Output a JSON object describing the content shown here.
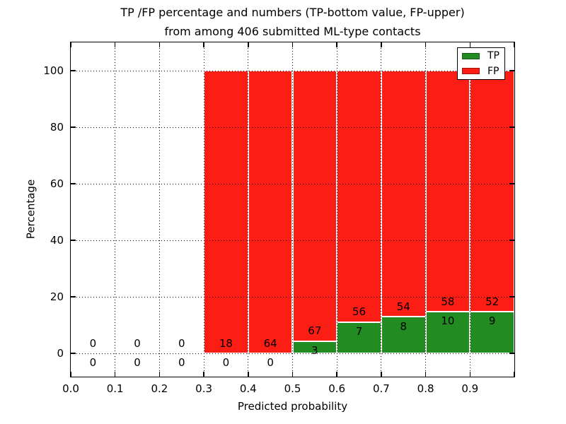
{
  "chart_data": {
    "type": "bar",
    "subtype": "stacked-percentage-histogram",
    "title_line1": "TP /FP percentage and numbers (TP-bottom value, FP-upper)",
    "title_line2": "from among 406 submitted ML-type contacts",
    "xlabel": "Predicted probability",
    "ylabel": "Percentage",
    "total_contacts": 406,
    "bin_edges": [
      0.0,
      0.1,
      0.2,
      0.3,
      0.4,
      0.5,
      0.6,
      0.7,
      0.8,
      0.9,
      1.0
    ],
    "categories": [
      "0.0-0.1",
      "0.1-0.2",
      "0.2-0.3",
      "0.3-0.4",
      "0.4-0.5",
      "0.5-0.6",
      "0.6-0.7",
      "0.7-0.8",
      "0.8-0.9",
      "0.9-1.0"
    ],
    "series": [
      {
        "name": "TP",
        "color": "#228b22",
        "counts": [
          0,
          0,
          0,
          0,
          0,
          3,
          7,
          8,
          10,
          9
        ]
      },
      {
        "name": "FP",
        "color": "#fc1d14",
        "counts": [
          0,
          0,
          0,
          18,
          64,
          67,
          56,
          54,
          58,
          52
        ]
      }
    ],
    "tp_percent_of_bin": [
      null,
      null,
      null,
      0,
      0,
      4.29,
      11.11,
      12.9,
      14.71,
      14.75
    ],
    "bars_fill_to_percent": 100,
    "x_tick_labels": [
      "0.0",
      "0.1",
      "0.2",
      "0.3",
      "0.4",
      "0.5",
      "0.6",
      "0.7",
      "0.8",
      "0.9"
    ],
    "y_tick_labels": [
      "0",
      "20",
      "40",
      "60",
      "80",
      "100"
    ],
    "y_ticks": [
      0,
      20,
      40,
      60,
      80,
      100
    ],
    "xlim": [
      0.0,
      1.0
    ],
    "ylim": [
      -8.25,
      110
    ],
    "grid": {
      "style": "dotted",
      "color": "#000000",
      "drawn_on_top_of_bars": true
    },
    "legend": {
      "position": "upper right",
      "entries": [
        "TP",
        "FP"
      ]
    },
    "colors": {
      "tp_green": "#228b22",
      "fp_red": "#fc1d14",
      "background": "#ffffff",
      "text": "#000000",
      "bar_edge": "#ffffff"
    }
  }
}
